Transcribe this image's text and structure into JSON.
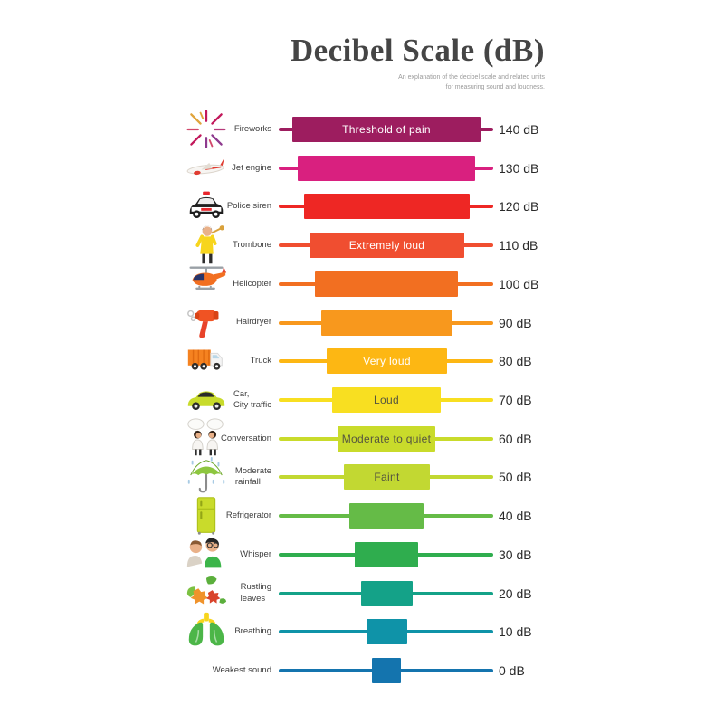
{
  "header": {
    "title": "Decibel Scale (dB)",
    "subtitle_line1": "An explanation of the decibel scale and related units",
    "subtitle_line2": "for measuring sound and loudness."
  },
  "chart_data": {
    "type": "bar",
    "orientation": "horizontal",
    "title": "Decibel Scale (dB)",
    "unit": "dB",
    "value_range": [
      0,
      140
    ],
    "grid": false,
    "legend": false,
    "categories": [
      "Fireworks",
      "Jet engine",
      "Police siren",
      "Trombone",
      "Helicopter",
      "Hairdryer",
      "Truck",
      "Car, City traffic",
      "Conversation",
      "Moderate rainfall",
      "Refrigerator",
      "Whisper",
      "Rustling leaves",
      "Breathing",
      "Weakest sound"
    ],
    "values": [
      140,
      130,
      120,
      110,
      100,
      90,
      80,
      70,
      60,
      50,
      40,
      30,
      20,
      10,
      0
    ],
    "bar_annotations": {
      "140": "Threshold of pain",
      "110": "Extremely loud",
      "80": "Very loud",
      "70": "Loud",
      "60": "Moderate to quiet",
      "50": "Faint"
    },
    "colors": [
      "#9D1D5F",
      "#D9207F",
      "#EE2724",
      "#F04E30",
      "#F26F21",
      "#F8981D",
      "#FDB713",
      "#F8DF21",
      "#C9DB2B",
      "#C2D832",
      "#65BB47",
      "#2FAD4E",
      "#14A288",
      "#0F93A8",
      "#1474AE"
    ]
  },
  "rows": [
    {
      "source": "Fireworks",
      "db": 140,
      "db_label": "140 dB",
      "bar_label": "Threshold of pain",
      "bar_text_color": "#FFFFFF",
      "color": "#9D1D5F",
      "icon": "fireworks-icon"
    },
    {
      "source": "Jet engine",
      "db": 130,
      "db_label": "130 dB",
      "bar_label": "",
      "bar_text_color": "",
      "color": "#D9207F",
      "icon": "jet-engine-icon"
    },
    {
      "source": "Police siren",
      "db": 120,
      "db_label": "120 dB",
      "bar_label": "",
      "bar_text_color": "",
      "color": "#EE2724",
      "icon": "police-car-icon"
    },
    {
      "source": "Trombone",
      "db": 110,
      "db_label": "110 dB",
      "bar_label": "Extremely loud",
      "bar_text_color": "#FFFFFF",
      "color": "#F04E30",
      "icon": "trombone-player-icon"
    },
    {
      "source": "Helicopter",
      "db": 100,
      "db_label": "100 dB",
      "bar_label": "",
      "bar_text_color": "",
      "color": "#F26F21",
      "icon": "helicopter-icon"
    },
    {
      "source": "Hairdryer",
      "db": 90,
      "db_label": "90 dB",
      "bar_label": "",
      "bar_text_color": "",
      "color": "#F8981D",
      "icon": "hairdryer-icon"
    },
    {
      "source": "Truck",
      "db": 80,
      "db_label": "80 dB",
      "bar_label": "Very loud",
      "bar_text_color": "#FFFFFF",
      "color": "#FDB713",
      "icon": "truck-icon"
    },
    {
      "source": "Car,\nCity traffic",
      "db": 70,
      "db_label": "70 dB",
      "bar_label": "Loud",
      "bar_text_color": "#55553F",
      "color": "#F8DF21",
      "icon": "car-icon"
    },
    {
      "source": "Conversation",
      "db": 60,
      "db_label": "60 dB",
      "bar_label": "Moderate to quiet",
      "bar_text_color": "#55553F",
      "color": "#C9DB2B",
      "icon": "conversation-icon"
    },
    {
      "source": "Moderate\nrainfall",
      "db": 50,
      "db_label": "50 dB",
      "bar_label": "Faint",
      "bar_text_color": "#55553F",
      "color": "#C2D832",
      "icon": "umbrella-rain-icon"
    },
    {
      "source": "Refrigerator",
      "db": 40,
      "db_label": "40 dB",
      "bar_label": "",
      "bar_text_color": "",
      "color": "#65BB47",
      "icon": "refrigerator-icon"
    },
    {
      "source": "Whisper",
      "db": 30,
      "db_label": "30 dB",
      "bar_label": "",
      "bar_text_color": "",
      "color": "#2FAD4E",
      "icon": "whisper-icon"
    },
    {
      "source": "Rustling\nleaves",
      "db": 20,
      "db_label": "20 dB",
      "bar_label": "",
      "bar_text_color": "",
      "color": "#14A288",
      "icon": "leaves-icon"
    },
    {
      "source": "Breathing",
      "db": 10,
      "db_label": "10 dB",
      "bar_label": "",
      "bar_text_color": "",
      "color": "#0F93A8",
      "icon": "lungs-icon"
    },
    {
      "source": "Weakest sound",
      "db": 0,
      "db_label": "0 dB",
      "bar_label": "",
      "bar_text_color": "",
      "color": "#1474AE",
      "icon": ""
    }
  ]
}
